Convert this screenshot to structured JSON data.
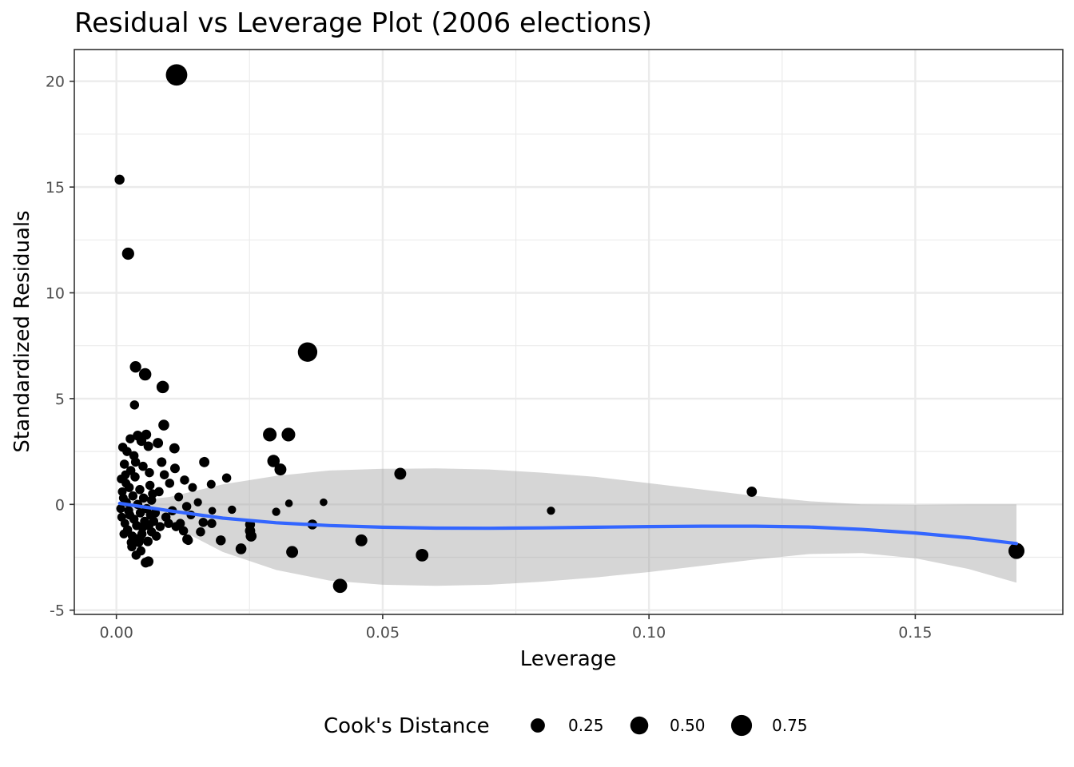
{
  "chart_data": {
    "type": "scatter",
    "title": "Residual vs Leverage Plot (2006 elections)",
    "xlabel": "Leverage",
    "ylabel": "Standardized Residuals",
    "xlim": [
      -0.0079,
      0.1777
    ],
    "ylim": [
      -5.2,
      21.5
    ],
    "x_ticks": [
      0.0,
      0.05,
      0.1,
      0.15
    ],
    "x_tick_labels": [
      "0.00",
      "0.05",
      "0.10",
      "0.15"
    ],
    "y_ticks": [
      -5,
      0,
      5,
      10,
      15,
      20
    ],
    "y_tick_labels": [
      "-5",
      "0",
      "5",
      "10",
      "15",
      "20"
    ],
    "grid": true,
    "legend": {
      "title": "Cook's Distance",
      "position": "bottom",
      "entries": [
        {
          "label": "0.25",
          "cooks": 0.25
        },
        {
          "label": "0.50",
          "cooks": 0.5
        },
        {
          "label": "0.75",
          "cooks": 0.75
        }
      ]
    },
    "colors": {
      "points": "#000000",
      "smooth_line": "#3366ff",
      "ribbon": "#999999",
      "grid": "#ebebeb",
      "panel_border": "#333333"
    },
    "points": [
      {
        "x": 0.0113,
        "y": 20.3,
        "cooks": 0.8
      },
      {
        "x": 0.0006,
        "y": 15.35,
        "cooks": 0.07
      },
      {
        "x": 0.0022,
        "y": 11.85,
        "cooks": 0.15
      },
      {
        "x": 0.0359,
        "y": 7.2,
        "cooks": 0.62
      },
      {
        "x": 0.0036,
        "y": 6.5,
        "cooks": 0.12
      },
      {
        "x": 0.0054,
        "y": 6.15,
        "cooks": 0.16
      },
      {
        "x": 0.0087,
        "y": 5.55,
        "cooks": 0.16
      },
      {
        "x": 0.0034,
        "y": 4.7,
        "cooks": 0.05
      },
      {
        "x": 0.0089,
        "y": 3.75,
        "cooks": 0.1
      },
      {
        "x": 0.0288,
        "y": 3.3,
        "cooks": 0.22
      },
      {
        "x": 0.0323,
        "y": 3.3,
        "cooks": 0.22
      },
      {
        "x": 0.0109,
        "y": 2.65,
        "cooks": 0.08
      },
      {
        "x": 0.0295,
        "y": 2.05,
        "cooks": 0.16
      },
      {
        "x": 0.0165,
        "y": 2.0,
        "cooks": 0.08
      },
      {
        "x": 0.0308,
        "y": 1.65,
        "cooks": 0.14
      },
      {
        "x": 0.0533,
        "y": 1.45,
        "cooks": 0.14
      },
      {
        "x": 0.0207,
        "y": 1.25,
        "cooks": 0.05
      },
      {
        "x": 0.1193,
        "y": 0.6,
        "cooks": 0.08
      },
      {
        "x": 0.0389,
        "y": 0.1,
        "cooks": 0.02
      },
      {
        "x": 0.0324,
        "y": 0.05,
        "cooks": 0.02
      },
      {
        "x": 0.0816,
        "y": -0.3,
        "cooks": 0.03
      },
      {
        "x": 0.03,
        "y": -0.35,
        "cooks": 0.03
      },
      {
        "x": 0.0368,
        "y": -0.95,
        "cooks": 0.07
      },
      {
        "x": 0.046,
        "y": -1.7,
        "cooks": 0.14
      },
      {
        "x": 0.033,
        "y": -2.25,
        "cooks": 0.14
      },
      {
        "x": 0.0574,
        "y": -2.4,
        "cooks": 0.17
      },
      {
        "x": 0.042,
        "y": -3.85,
        "cooks": 0.25
      },
      {
        "x": 0.169,
        "y": -2.2,
        "cooks": 0.36
      },
      {
        "x": 0.0234,
        "y": -2.1,
        "cooks": 0.1
      },
      {
        "x": 0.0196,
        "y": -1.7,
        "cooks": 0.07
      },
      {
        "x": 0.0253,
        "y": -1.5,
        "cooks": 0.1
      },
      {
        "x": 0.0251,
        "y": -1.25,
        "cooks": 0.08
      },
      {
        "x": 0.0251,
        "y": -0.95,
        "cooks": 0.07
      },
      {
        "x": 0.0217,
        "y": -0.25,
        "cooks": 0.03
      },
      {
        "x": 0.018,
        "y": -0.3,
        "cooks": 0.02
      },
      {
        "x": 0.0178,
        "y": 0.95,
        "cooks": 0.04
      },
      {
        "x": 0.0143,
        "y": 0.8,
        "cooks": 0.04
      },
      {
        "x": 0.0133,
        "y": -1.65,
        "cooks": 0.07
      },
      {
        "x": 0.0153,
        "y": 0.1,
        "cooks": 0.03
      },
      {
        "x": 0.0158,
        "y": -1.3,
        "cooks": 0.05
      },
      {
        "x": 0.0179,
        "y": -0.9,
        "cooks": 0.05
      },
      {
        "x": 0.0163,
        "y": -0.85,
        "cooks": 0.05
      },
      {
        "x": 0.0078,
        "y": 2.9,
        "cooks": 0.08
      },
      {
        "x": 0.0085,
        "y": 2.0,
        "cooks": 0.06
      },
      {
        "x": 0.011,
        "y": 1.7,
        "cooks": 0.06
      },
      {
        "x": 0.0128,
        "y": 1.15,
        "cooks": 0.05
      },
      {
        "x": 0.0056,
        "y": 3.3,
        "cooks": 0.07
      },
      {
        "x": 0.0047,
        "y": 3.0,
        "cooks": 0.07
      },
      {
        "x": 0.006,
        "y": 2.75,
        "cooks": 0.06
      },
      {
        "x": 0.0026,
        "y": 3.1,
        "cooks": 0.05
      },
      {
        "x": 0.0012,
        "y": 2.7,
        "cooks": 0.05
      },
      {
        "x": 0.004,
        "y": 3.25,
        "cooks": 0.07
      },
      {
        "x": 0.0015,
        "y": 1.9,
        "cooks": 0.05
      },
      {
        "x": 0.009,
        "y": 1.4,
        "cooks": 0.05
      },
      {
        "x": 0.01,
        "y": 1.0,
        "cooks": 0.05
      },
      {
        "x": 0.008,
        "y": 0.6,
        "cooks": 0.05
      },
      {
        "x": 0.0117,
        "y": 0.35,
        "cooks": 0.04
      },
      {
        "x": 0.0132,
        "y": -0.1,
        "cooks": 0.05
      },
      {
        "x": 0.0112,
        "y": -1.05,
        "cooks": 0.05
      },
      {
        "x": 0.0098,
        "y": -0.9,
        "cooks": 0.05
      },
      {
        "x": 0.0126,
        "y": -1.25,
        "cooks": 0.05
      },
      {
        "x": 0.0135,
        "y": -1.7,
        "cooks": 0.05
      },
      {
        "x": 0.0082,
        "y": -1.05,
        "cooks": 0.05
      },
      {
        "x": 0.006,
        "y": -2.7,
        "cooks": 0.08
      },
      {
        "x": 0.0055,
        "y": -2.75,
        "cooks": 0.07
      },
      {
        "x": 0.0037,
        "y": -2.4,
        "cooks": 0.05
      },
      {
        "x": 0.0046,
        "y": -2.2,
        "cooks": 0.05
      },
      {
        "x": 0.0059,
        "y": -1.75,
        "cooks": 0.06
      },
      {
        "x": 0.0028,
        "y": -1.8,
        "cooks": 0.05
      },
      {
        "x": 0.0048,
        "y": -1.4,
        "cooks": 0.05
      },
      {
        "x": 0.0066,
        "y": -1.3,
        "cooks": 0.05
      },
      {
        "x": 0.007,
        "y": -0.8,
        "cooks": 0.05
      },
      {
        "x": 0.0073,
        "y": -0.4,
        "cooks": 0.05
      },
      {
        "x": 0.0066,
        "y": 0.2,
        "cooks": 0.05
      },
      {
        "x": 0.0063,
        "y": 0.9,
        "cooks": 0.05
      },
      {
        "x": 0.0062,
        "y": 1.5,
        "cooks": 0.05
      },
      {
        "x": 0.0033,
        "y": 2.3,
        "cooks": 0.05
      },
      {
        "x": 0.002,
        "y": 2.5,
        "cooks": 0.05
      },
      {
        "x": 0.0009,
        "y": 1.2,
        "cooks": 0.04
      },
      {
        "x": 0.0011,
        "y": 0.6,
        "cooks": 0.04
      },
      {
        "x": 0.0008,
        "y": -0.2,
        "cooks": 0.04
      },
      {
        "x": 0.001,
        "y": -0.6,
        "cooks": 0.04
      },
      {
        "x": 0.0013,
        "y": 0.3,
        "cooks": 0.04
      },
      {
        "x": 0.0016,
        "y": -0.9,
        "cooks": 0.04
      },
      {
        "x": 0.0018,
        "y": 1.0,
        "cooks": 0.04
      },
      {
        "x": 0.0021,
        "y": -1.2,
        "cooks": 0.05
      },
      {
        "x": 0.0024,
        "y": 0.8,
        "cooks": 0.05
      },
      {
        "x": 0.0025,
        "y": -0.5,
        "cooks": 0.05
      },
      {
        "x": 0.0027,
        "y": 1.6,
        "cooks": 0.05
      },
      {
        "x": 0.003,
        "y": -1.5,
        "cooks": 0.05
      },
      {
        "x": 0.0031,
        "y": 0.4,
        "cooks": 0.05
      },
      {
        "x": 0.0033,
        "y": -0.7,
        "cooks": 0.05
      },
      {
        "x": 0.0035,
        "y": 1.3,
        "cooks": 0.05
      },
      {
        "x": 0.0038,
        "y": -1.0,
        "cooks": 0.05
      },
      {
        "x": 0.004,
        "y": 0.0,
        "cooks": 0.05
      },
      {
        "x": 0.0042,
        "y": -1.8,
        "cooks": 0.05
      },
      {
        "x": 0.0044,
        "y": 0.7,
        "cooks": 0.05
      },
      {
        "x": 0.0045,
        "y": -0.4,
        "cooks": 0.05
      },
      {
        "x": 0.0049,
        "y": -1.1,
        "cooks": 0.05
      },
      {
        "x": 0.0051,
        "y": 0.3,
        "cooks": 0.05
      },
      {
        "x": 0.0053,
        "y": -0.8,
        "cooks": 0.05
      },
      {
        "x": 0.0057,
        "y": -0.2,
        "cooks": 0.05
      },
      {
        "x": 0.0023,
        "y": -0.3,
        "cooks": 0.05
      },
      {
        "x": 0.0019,
        "y": 0.1,
        "cooks": 0.04
      },
      {
        "x": 0.0029,
        "y": -2.0,
        "cooks": 0.05
      },
      {
        "x": 0.0017,
        "y": 1.4,
        "cooks": 0.04
      },
      {
        "x": 0.0014,
        "y": -1.4,
        "cooks": 0.04
      },
      {
        "x": 0.0036,
        "y": 2.0,
        "cooks": 0.05
      },
      {
        "x": 0.005,
        "y": 1.8,
        "cooks": 0.05
      },
      {
        "x": 0.0043,
        "y": -1.6,
        "cooks": 0.05
      },
      {
        "x": 0.0061,
        "y": -1.0,
        "cooks": 0.05
      },
      {
        "x": 0.0064,
        "y": -0.5,
        "cooks": 0.05
      },
      {
        "x": 0.0068,
        "y": 0.5,
        "cooks": 0.05
      },
      {
        "x": 0.0075,
        "y": -1.5,
        "cooks": 0.05
      },
      {
        "x": 0.0093,
        "y": -0.6,
        "cooks": 0.05
      },
      {
        "x": 0.0105,
        "y": -0.3,
        "cooks": 0.05
      },
      {
        "x": 0.012,
        "y": -0.9,
        "cooks": 0.05
      },
      {
        "x": 0.014,
        "y": -0.5,
        "cooks": 0.04
      }
    ],
    "smooth_line": {
      "x": [
        0.0006,
        0.01,
        0.02,
        0.03,
        0.04,
        0.05,
        0.06,
        0.07,
        0.08,
        0.09,
        0.1,
        0.11,
        0.12,
        0.13,
        0.14,
        0.15,
        0.16,
        0.169
      ],
      "y": [
        0.05,
        -0.3,
        -0.65,
        -0.87,
        -1.0,
        -1.08,
        -1.12,
        -1.13,
        -1.11,
        -1.08,
        -1.05,
        -1.03,
        -1.03,
        -1.07,
        -1.18,
        -1.35,
        -1.58,
        -1.85
      ]
    },
    "ribbon": {
      "x": [
        0.0006,
        0.01,
        0.02,
        0.03,
        0.04,
        0.05,
        0.06,
        0.07,
        0.08,
        0.09,
        0.1,
        0.11,
        0.12,
        0.13,
        0.14,
        0.15,
        0.16,
        0.169
      ],
      "upper": [
        0.1,
        0.35,
        0.95,
        1.35,
        1.6,
        1.68,
        1.7,
        1.65,
        1.5,
        1.3,
        1.0,
        0.7,
        0.4,
        0.15,
        0.0,
        -0.02,
        0.0,
        0.0
      ],
      "lower": [
        0.0,
        -0.95,
        -2.25,
        -3.1,
        -3.6,
        -3.8,
        -3.85,
        -3.8,
        -3.65,
        -3.45,
        -3.2,
        -2.9,
        -2.6,
        -2.35,
        -2.3,
        -2.55,
        -3.05,
        -3.7
      ]
    }
  }
}
